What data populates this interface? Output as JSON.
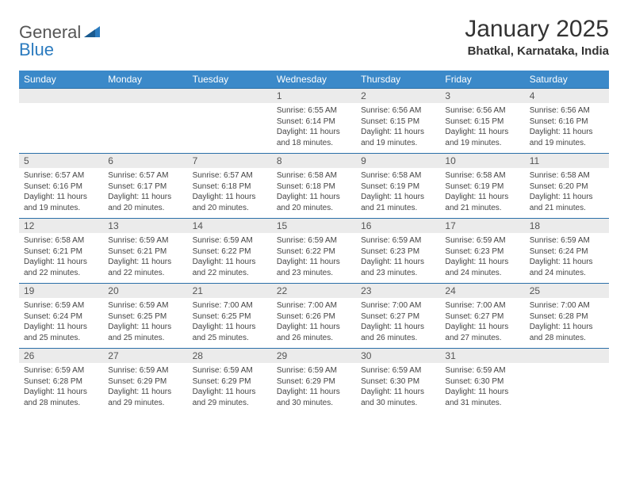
{
  "logo": {
    "text1": "General",
    "text2": "Blue"
  },
  "title": "January 2025",
  "location": "Bhatkal, Karnataka, India",
  "colors": {
    "header_bg": "#3b89c9",
    "header_text": "#ffffff",
    "row_border": "#2b6fa8",
    "daynum_bg": "#ebebeb",
    "body_text": "#444444",
    "title_text": "#333333",
    "logo_gray": "#555555",
    "logo_blue": "#2b7bbf",
    "page_bg": "#ffffff"
  },
  "day_headers": [
    "Sunday",
    "Monday",
    "Tuesday",
    "Wednesday",
    "Thursday",
    "Friday",
    "Saturday"
  ],
  "weeks": [
    [
      {},
      {},
      {},
      {
        "num": "1",
        "sunrise": "Sunrise: 6:55 AM",
        "sunset": "Sunset: 6:14 PM",
        "dl1": "Daylight: 11 hours",
        "dl2": "and 18 minutes."
      },
      {
        "num": "2",
        "sunrise": "Sunrise: 6:56 AM",
        "sunset": "Sunset: 6:15 PM",
        "dl1": "Daylight: 11 hours",
        "dl2": "and 19 minutes."
      },
      {
        "num": "3",
        "sunrise": "Sunrise: 6:56 AM",
        "sunset": "Sunset: 6:15 PM",
        "dl1": "Daylight: 11 hours",
        "dl2": "and 19 minutes."
      },
      {
        "num": "4",
        "sunrise": "Sunrise: 6:56 AM",
        "sunset": "Sunset: 6:16 PM",
        "dl1": "Daylight: 11 hours",
        "dl2": "and 19 minutes."
      }
    ],
    [
      {
        "num": "5",
        "sunrise": "Sunrise: 6:57 AM",
        "sunset": "Sunset: 6:16 PM",
        "dl1": "Daylight: 11 hours",
        "dl2": "and 19 minutes."
      },
      {
        "num": "6",
        "sunrise": "Sunrise: 6:57 AM",
        "sunset": "Sunset: 6:17 PM",
        "dl1": "Daylight: 11 hours",
        "dl2": "and 20 minutes."
      },
      {
        "num": "7",
        "sunrise": "Sunrise: 6:57 AM",
        "sunset": "Sunset: 6:18 PM",
        "dl1": "Daylight: 11 hours",
        "dl2": "and 20 minutes."
      },
      {
        "num": "8",
        "sunrise": "Sunrise: 6:58 AM",
        "sunset": "Sunset: 6:18 PM",
        "dl1": "Daylight: 11 hours",
        "dl2": "and 20 minutes."
      },
      {
        "num": "9",
        "sunrise": "Sunrise: 6:58 AM",
        "sunset": "Sunset: 6:19 PM",
        "dl1": "Daylight: 11 hours",
        "dl2": "and 21 minutes."
      },
      {
        "num": "10",
        "sunrise": "Sunrise: 6:58 AM",
        "sunset": "Sunset: 6:19 PM",
        "dl1": "Daylight: 11 hours",
        "dl2": "and 21 minutes."
      },
      {
        "num": "11",
        "sunrise": "Sunrise: 6:58 AM",
        "sunset": "Sunset: 6:20 PM",
        "dl1": "Daylight: 11 hours",
        "dl2": "and 21 minutes."
      }
    ],
    [
      {
        "num": "12",
        "sunrise": "Sunrise: 6:58 AM",
        "sunset": "Sunset: 6:21 PM",
        "dl1": "Daylight: 11 hours",
        "dl2": "and 22 minutes."
      },
      {
        "num": "13",
        "sunrise": "Sunrise: 6:59 AM",
        "sunset": "Sunset: 6:21 PM",
        "dl1": "Daylight: 11 hours",
        "dl2": "and 22 minutes."
      },
      {
        "num": "14",
        "sunrise": "Sunrise: 6:59 AM",
        "sunset": "Sunset: 6:22 PM",
        "dl1": "Daylight: 11 hours",
        "dl2": "and 22 minutes."
      },
      {
        "num": "15",
        "sunrise": "Sunrise: 6:59 AM",
        "sunset": "Sunset: 6:22 PM",
        "dl1": "Daylight: 11 hours",
        "dl2": "and 23 minutes."
      },
      {
        "num": "16",
        "sunrise": "Sunrise: 6:59 AM",
        "sunset": "Sunset: 6:23 PM",
        "dl1": "Daylight: 11 hours",
        "dl2": "and 23 minutes."
      },
      {
        "num": "17",
        "sunrise": "Sunrise: 6:59 AM",
        "sunset": "Sunset: 6:23 PM",
        "dl1": "Daylight: 11 hours",
        "dl2": "and 24 minutes."
      },
      {
        "num": "18",
        "sunrise": "Sunrise: 6:59 AM",
        "sunset": "Sunset: 6:24 PM",
        "dl1": "Daylight: 11 hours",
        "dl2": "and 24 minutes."
      }
    ],
    [
      {
        "num": "19",
        "sunrise": "Sunrise: 6:59 AM",
        "sunset": "Sunset: 6:24 PM",
        "dl1": "Daylight: 11 hours",
        "dl2": "and 25 minutes."
      },
      {
        "num": "20",
        "sunrise": "Sunrise: 6:59 AM",
        "sunset": "Sunset: 6:25 PM",
        "dl1": "Daylight: 11 hours",
        "dl2": "and 25 minutes."
      },
      {
        "num": "21",
        "sunrise": "Sunrise: 7:00 AM",
        "sunset": "Sunset: 6:25 PM",
        "dl1": "Daylight: 11 hours",
        "dl2": "and 25 minutes."
      },
      {
        "num": "22",
        "sunrise": "Sunrise: 7:00 AM",
        "sunset": "Sunset: 6:26 PM",
        "dl1": "Daylight: 11 hours",
        "dl2": "and 26 minutes."
      },
      {
        "num": "23",
        "sunrise": "Sunrise: 7:00 AM",
        "sunset": "Sunset: 6:27 PM",
        "dl1": "Daylight: 11 hours",
        "dl2": "and 26 minutes."
      },
      {
        "num": "24",
        "sunrise": "Sunrise: 7:00 AM",
        "sunset": "Sunset: 6:27 PM",
        "dl1": "Daylight: 11 hours",
        "dl2": "and 27 minutes."
      },
      {
        "num": "25",
        "sunrise": "Sunrise: 7:00 AM",
        "sunset": "Sunset: 6:28 PM",
        "dl1": "Daylight: 11 hours",
        "dl2": "and 28 minutes."
      }
    ],
    [
      {
        "num": "26",
        "sunrise": "Sunrise: 6:59 AM",
        "sunset": "Sunset: 6:28 PM",
        "dl1": "Daylight: 11 hours",
        "dl2": "and 28 minutes."
      },
      {
        "num": "27",
        "sunrise": "Sunrise: 6:59 AM",
        "sunset": "Sunset: 6:29 PM",
        "dl1": "Daylight: 11 hours",
        "dl2": "and 29 minutes."
      },
      {
        "num": "28",
        "sunrise": "Sunrise: 6:59 AM",
        "sunset": "Sunset: 6:29 PM",
        "dl1": "Daylight: 11 hours",
        "dl2": "and 29 minutes."
      },
      {
        "num": "29",
        "sunrise": "Sunrise: 6:59 AM",
        "sunset": "Sunset: 6:29 PM",
        "dl1": "Daylight: 11 hours",
        "dl2": "and 30 minutes."
      },
      {
        "num": "30",
        "sunrise": "Sunrise: 6:59 AM",
        "sunset": "Sunset: 6:30 PM",
        "dl1": "Daylight: 11 hours",
        "dl2": "and 30 minutes."
      },
      {
        "num": "31",
        "sunrise": "Sunrise: 6:59 AM",
        "sunset": "Sunset: 6:30 PM",
        "dl1": "Daylight: 11 hours",
        "dl2": "and 31 minutes."
      },
      {}
    ]
  ]
}
